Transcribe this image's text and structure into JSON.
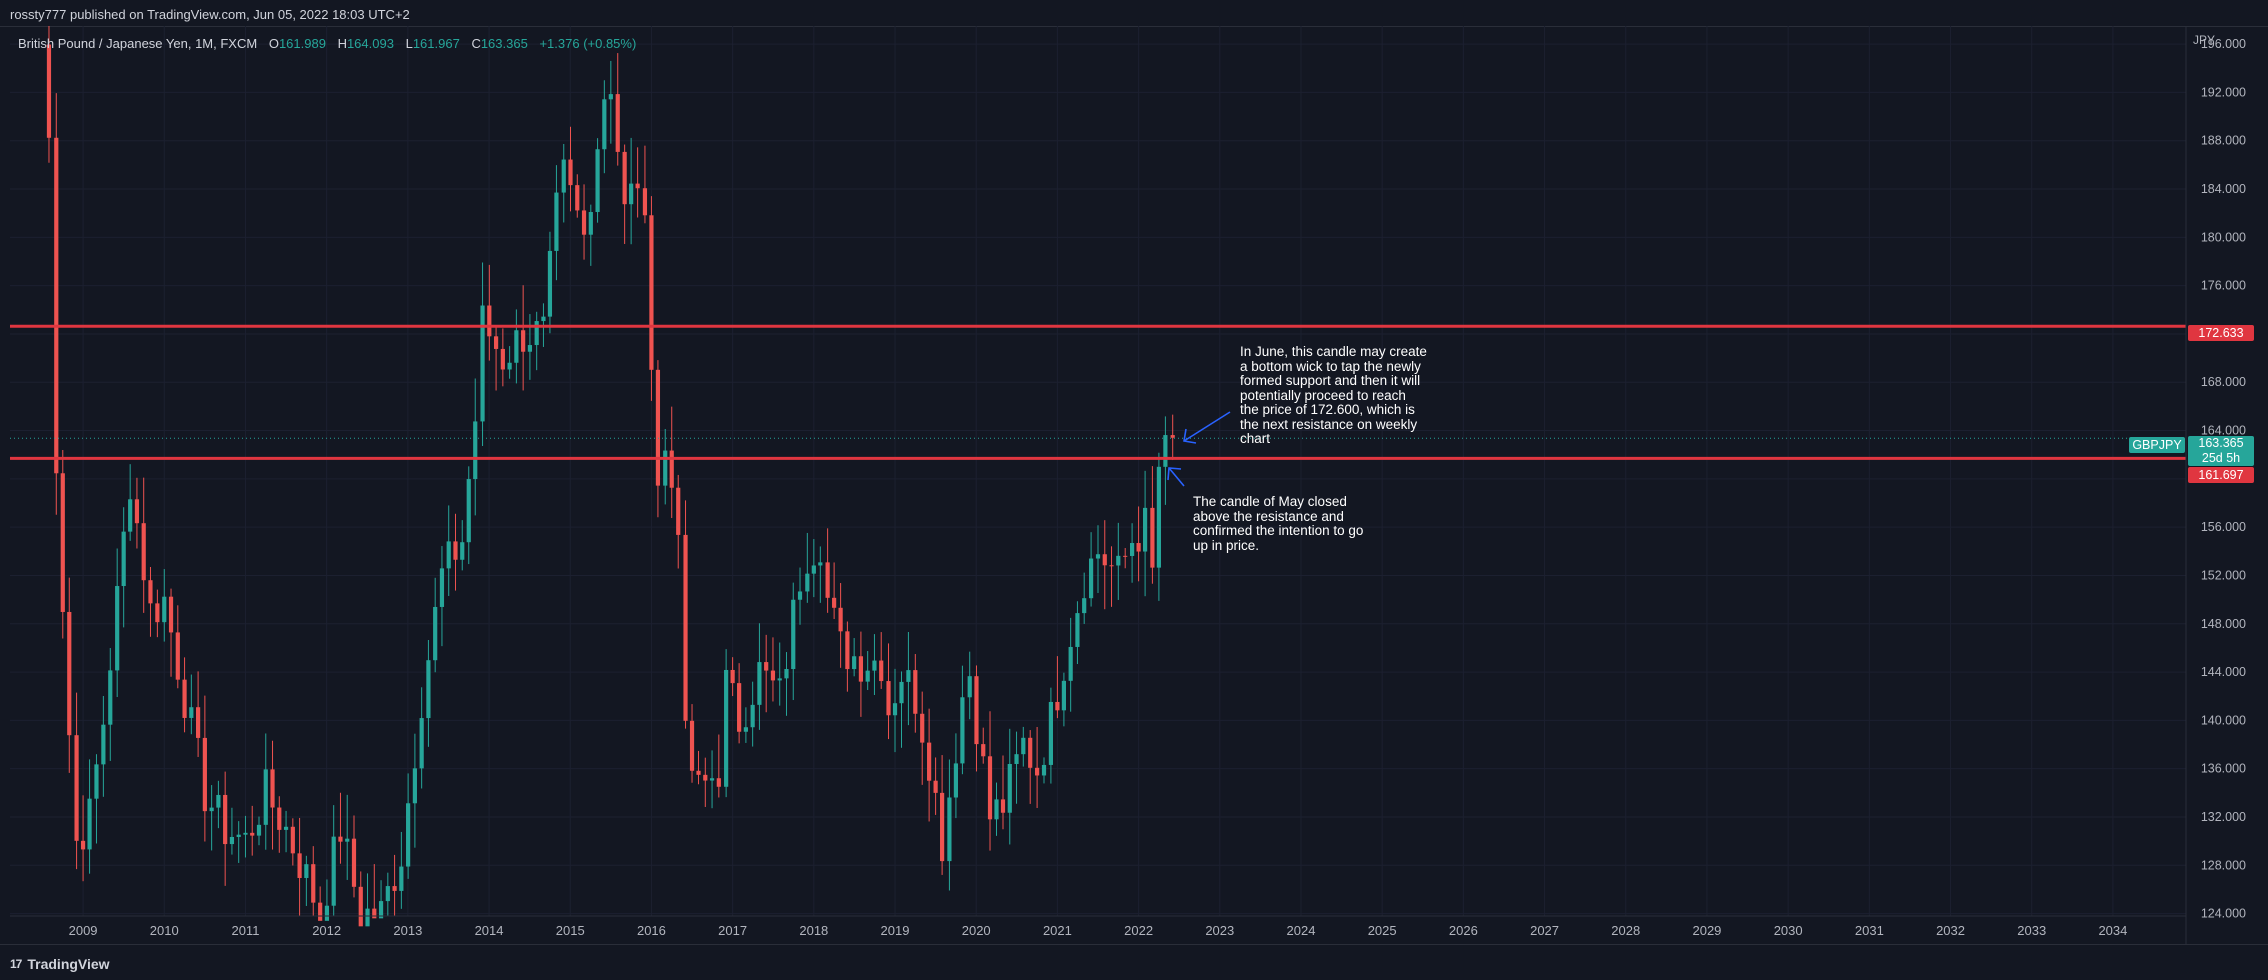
{
  "header": {
    "publisher_line": "rossty777 published on TradingView.com, Jun 05, 2022 18:03 UTC+2"
  },
  "legend": {
    "symbol_text": "British Pound / Japanese Yen, 1M, FXCM",
    "open_key": "O",
    "open": "161.989",
    "high_key": "H",
    "high": "164.093",
    "low_key": "L",
    "low": "161.967",
    "close_key": "C",
    "close": "163.365",
    "change": "+1.376 (+0.85%)"
  },
  "colors": {
    "up": "#26a69a",
    "down": "#ef5350",
    "background": "#131722",
    "level_line": "#e03640",
    "annotation_arrow": "#2962ff"
  },
  "symbol_tag": "GBPJPY",
  "current_price_label": {
    "price": "163.365",
    "countdown": "25d 5h"
  },
  "annotations": {
    "june_note": [
      "In June, this candle may create",
      "a bottom wick to tap the newly",
      "formed support and then it will",
      "potentially proceed to reach",
      "the price of 172.600, which is",
      "the next resistance on weekly",
      "chart"
    ],
    "may_note": [
      "The candle of May closed",
      "above the resistance and",
      "confirmed the intention to go",
      "up in price."
    ]
  },
  "footer": {
    "brand": "TradingView",
    "brand_mark": "17"
  },
  "chart_data": {
    "type": "candlestick",
    "symbol": "GBPJPY",
    "timeframe": "1M",
    "currency_label": "JPY",
    "y_ticks": [
      "124.000",
      "128.000",
      "132.000",
      "136.000",
      "140.000",
      "144.000",
      "148.000",
      "152.000",
      "156.000",
      "160.000",
      "164.000",
      "168.000",
      "172.000",
      "176.000",
      "180.000",
      "184.000",
      "188.000",
      "192.000",
      "196.000"
    ],
    "x_ticks": [
      "2009",
      "2010",
      "2011",
      "2012",
      "2013",
      "2014",
      "2015",
      "2016",
      "2017",
      "2018",
      "2019",
      "2020",
      "2021",
      "2022",
      "2023",
      "2024",
      "2025",
      "2026",
      "2027",
      "2028",
      "2029",
      "2030",
      "2031",
      "2032",
      "2033",
      "2034"
    ],
    "ylim": [
      123.8,
      197.5
    ],
    "xlim": [
      2008.1,
      2034.9
    ],
    "horizontal_levels": [
      {
        "price": 172.633,
        "label": "172.633"
      },
      {
        "price": 161.697,
        "label": "161.697"
      }
    ],
    "current_price": 163.365,
    "anchors": [
      {
        "t": 2008.5,
        "p": 196
      },
      {
        "t": 2008.58,
        "p": 188
      },
      {
        "t": 2008.67,
        "p": 162
      },
      {
        "t": 2008.75,
        "p": 150
      },
      {
        "t": 2008.83,
        "p": 139
      },
      {
        "t": 2008.92,
        "p": 130
      },
      {
        "t": 2009.08,
        "p": 132
      },
      {
        "t": 2009.25,
        "p": 140
      },
      {
        "t": 2009.42,
        "p": 150
      },
      {
        "t": 2009.58,
        "p": 160
      },
      {
        "t": 2009.83,
        "p": 149
      },
      {
        "t": 2010.0,
        "p": 150
      },
      {
        "t": 2010.25,
        "p": 142
      },
      {
        "t": 2010.5,
        "p": 134
      },
      {
        "t": 2010.75,
        "p": 131
      },
      {
        "t": 2011.0,
        "p": 130
      },
      {
        "t": 2011.25,
        "p": 134
      },
      {
        "t": 2011.5,
        "p": 131
      },
      {
        "t": 2011.75,
        "p": 127
      },
      {
        "t": 2011.92,
        "p": 124
      },
      {
        "t": 2012.17,
        "p": 131
      },
      {
        "t": 2012.42,
        "p": 124
      },
      {
        "t": 2012.67,
        "p": 124
      },
      {
        "t": 2012.92,
        "p": 129
      },
      {
        "t": 2013.17,
        "p": 142
      },
      {
        "t": 2013.42,
        "p": 152
      },
      {
        "t": 2013.67,
        "p": 155
      },
      {
        "t": 2013.83,
        "p": 165
      },
      {
        "t": 2013.92,
        "p": 173
      },
      {
        "t": 2014.17,
        "p": 170
      },
      {
        "t": 2014.42,
        "p": 172
      },
      {
        "t": 2014.67,
        "p": 172
      },
      {
        "t": 2014.83,
        "p": 182
      },
      {
        "t": 2014.92,
        "p": 185
      },
      {
        "t": 2015.17,
        "p": 180
      },
      {
        "t": 2015.42,
        "p": 192
      },
      {
        "t": 2015.5,
        "p": 193
      },
      {
        "t": 2015.67,
        "p": 182
      },
      {
        "t": 2015.83,
        "p": 185
      },
      {
        "t": 2015.92,
        "p": 180
      },
      {
        "t": 2016.0,
        "p": 171
      },
      {
        "t": 2016.08,
        "p": 160
      },
      {
        "t": 2016.17,
        "p": 162
      },
      {
        "t": 2016.33,
        "p": 157
      },
      {
        "t": 2016.42,
        "p": 138
      },
      {
        "t": 2016.58,
        "p": 134
      },
      {
        "t": 2016.83,
        "p": 136
      },
      {
        "t": 2016.92,
        "p": 143
      },
      {
        "t": 2017.08,
        "p": 140
      },
      {
        "t": 2017.33,
        "p": 144
      },
      {
        "t": 2017.58,
        "p": 142
      },
      {
        "t": 2017.83,
        "p": 152
      },
      {
        "t": 2017.92,
        "p": 154
      },
      {
        "t": 2018.08,
        "p": 155
      },
      {
        "t": 2018.17,
        "p": 150
      },
      {
        "t": 2018.33,
        "p": 146
      },
      {
        "t": 2018.58,
        "p": 145
      },
      {
        "t": 2018.83,
        "p": 145
      },
      {
        "t": 2018.92,
        "p": 141
      },
      {
        "t": 2019.08,
        "p": 144
      },
      {
        "t": 2019.25,
        "p": 142
      },
      {
        "t": 2019.42,
        "p": 137
      },
      {
        "t": 2019.58,
        "p": 130
      },
      {
        "t": 2019.67,
        "p": 134
      },
      {
        "t": 2019.83,
        "p": 142
      },
      {
        "t": 2019.92,
        "p": 144
      },
      {
        "t": 2020.17,
        "p": 132
      },
      {
        "t": 2020.33,
        "p": 133
      },
      {
        "t": 2020.58,
        "p": 138
      },
      {
        "t": 2020.75,
        "p": 136
      },
      {
        "t": 2020.92,
        "p": 140
      },
      {
        "t": 2021.08,
        "p": 145
      },
      {
        "t": 2021.33,
        "p": 152
      },
      {
        "t": 2021.5,
        "p": 154
      },
      {
        "t": 2021.75,
        "p": 152
      },
      {
        "t": 2021.92,
        "p": 155
      },
      {
        "t": 2022.08,
        "p": 156
      },
      {
        "t": 2022.17,
        "p": 152
      },
      {
        "t": 2022.25,
        "p": 161
      },
      {
        "t": 2022.33,
        "p": 162
      },
      {
        "t": 2022.42,
        "p": 163.4
      }
    ]
  }
}
